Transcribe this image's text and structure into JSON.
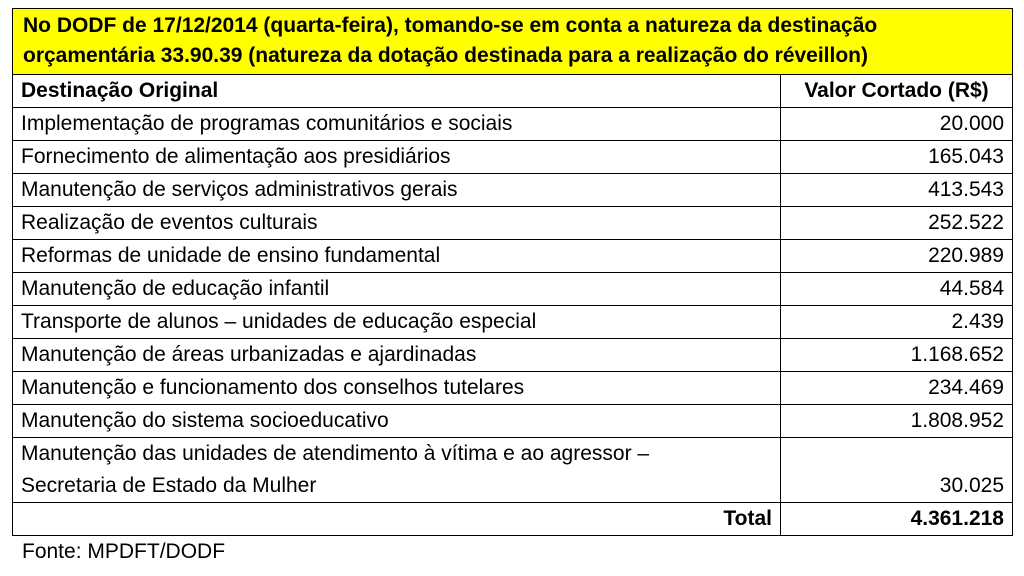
{
  "header": {
    "line1": "No DODF de 17/12/2014 (quarta-feira), tomando-se em conta a natureza da destinação",
    "line2": "orçamentária 33.90.39 (natureza da dotação destinada para a realização do réveillon)"
  },
  "columns": {
    "destination": "Destinação Original",
    "value": "Valor Cortado (R$)"
  },
  "rows": [
    {
      "destination": "Implementação de programas comunitários e sociais",
      "value": "20.000"
    },
    {
      "destination": "Fornecimento de alimentação aos presidiários",
      "value": "165.043"
    },
    {
      "destination": "Manutenção de serviços administrativos gerais",
      "value": "413.543"
    },
    {
      "destination": "Realização de eventos culturais",
      "value": "252.522"
    },
    {
      "destination": "Reformas de unidade de ensino fundamental",
      "value": "220.989"
    },
    {
      "destination": "Manutenção de educação infantil",
      "value": "44.584"
    },
    {
      "destination": "Transporte de alunos – unidades de educação especial",
      "value": "2.439"
    },
    {
      "destination": "Manutenção de áreas urbanizadas e ajardinadas",
      "value": "1.168.652"
    },
    {
      "destination": "Manutenção e funcionamento dos conselhos tutelares",
      "value": "234.469"
    },
    {
      "destination": "Manutenção do sistema socioeducativo",
      "value": "1.808.952"
    }
  ],
  "last_row": {
    "line1": "Manutenção das unidades de atendimento à vítima e ao agressor –",
    "line2": "Secretaria de Estado da Mulher",
    "value": "30.025"
  },
  "total": {
    "label": "Total",
    "value": "4.361.218"
  },
  "source": "Fonte: MPDFT/DODF"
}
